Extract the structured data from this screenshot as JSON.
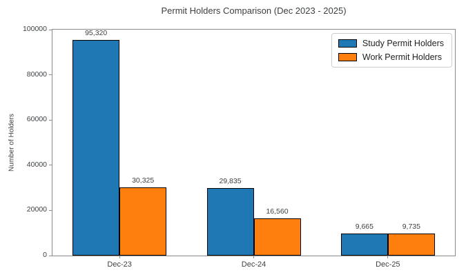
{
  "chart_data": {
    "type": "bar",
    "title": "Permit Holders Comparison (Dec 2023 - 2025)",
    "xlabel": "",
    "ylabel": "Number of Holders",
    "categories": [
      "Dec-23",
      "Dec-24",
      "Dec-25"
    ],
    "series": [
      {
        "name": "Study Permit Holders",
        "color": "#1f77b4",
        "values": [
          95320,
          29835,
          9665
        ],
        "value_labels": [
          "95,320",
          "29,835",
          "9,665"
        ]
      },
      {
        "name": "Work Permit Holders",
        "color": "#ff7f0e",
        "values": [
          30325,
          16560,
          9735
        ],
        "value_labels": [
          "30,325",
          "16,560",
          "9,735"
        ]
      }
    ],
    "ylim": [
      0,
      100000
    ],
    "yticks": [
      0,
      20000,
      40000,
      60000,
      80000,
      100000
    ],
    "ytick_labels": [
      "0",
      "20000",
      "40000",
      "60000",
      "80000",
      "100000"
    ],
    "grid": false,
    "legend_position": "upper right",
    "bar_edge_color": "#000000",
    "axis_color": "#8a8a8a",
    "text_color": "#3c4043"
  }
}
